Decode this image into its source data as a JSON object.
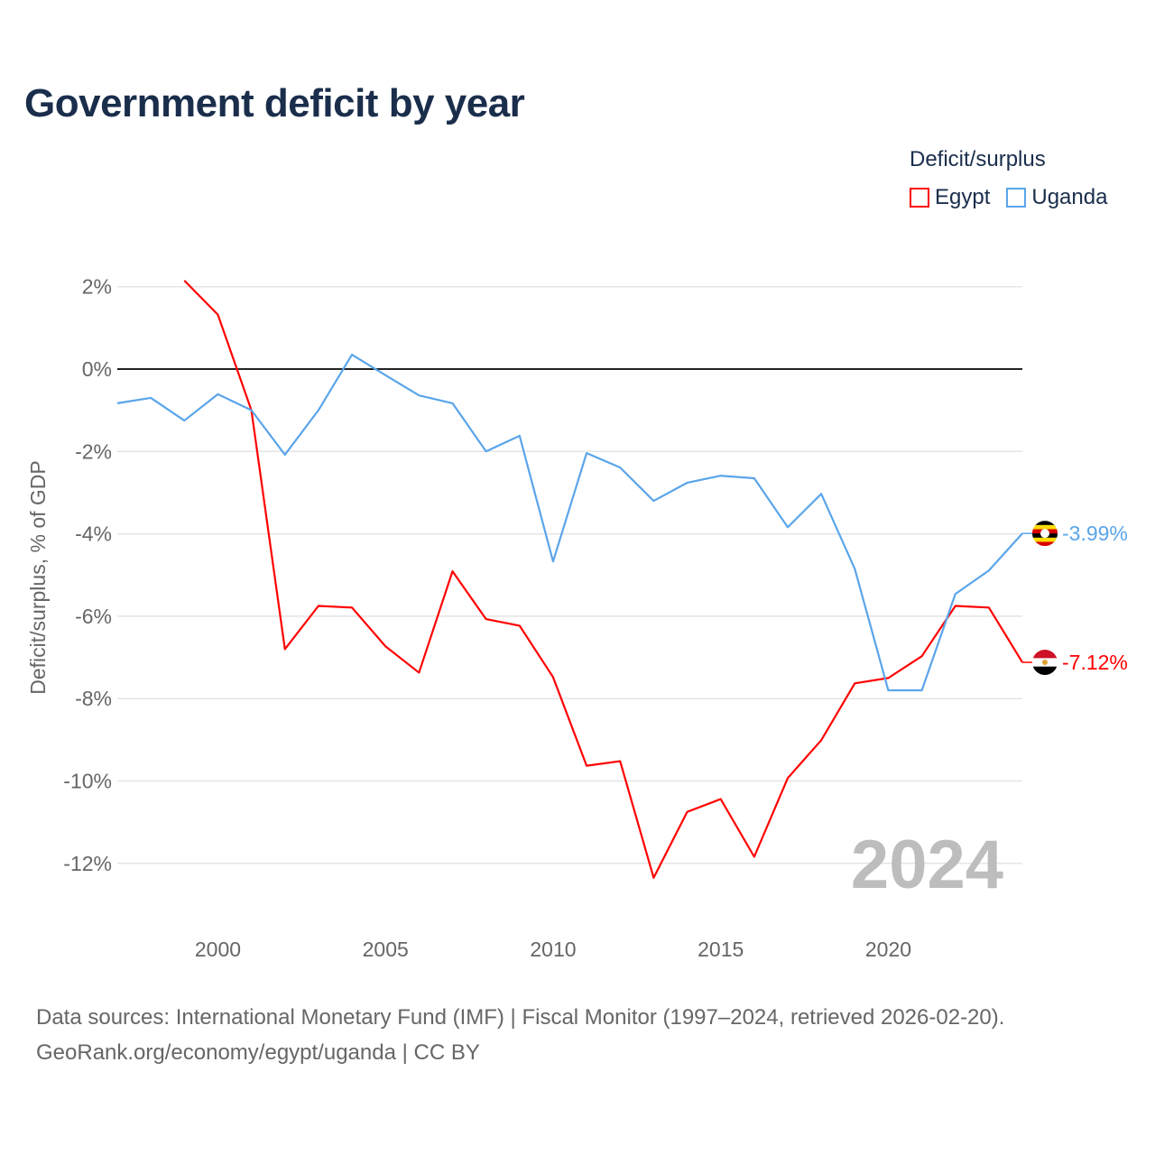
{
  "title": "Government deficit by year",
  "legend": {
    "title": "Deficit/surplus",
    "items": [
      {
        "name": "Egypt",
        "color": "#ff0000"
      },
      {
        "name": "Uganda",
        "color": "#5aa5ea"
      }
    ]
  },
  "chart_data": {
    "type": "line",
    "title": "Government deficit by year",
    "ylabel": "Deficit/surplus, % of GDP",
    "xlabel": "",
    "xlim": [
      1997,
      2024
    ],
    "ylim": [
      -13.5,
      2.5
    ],
    "x_ticks": [
      2000,
      2005,
      2010,
      2015,
      2020
    ],
    "x_tick_labels": [
      "2000",
      "2005",
      "2010",
      "2015",
      "2020"
    ],
    "y_ticks": [
      2,
      0,
      -2,
      -4,
      -6,
      -8,
      -10,
      -12
    ],
    "y_tick_labels": [
      "2%",
      "0%",
      "-2%",
      "-4%",
      "-6%",
      "-8%",
      "-10%",
      "-12%"
    ],
    "year_watermark": "2024",
    "grid": true,
    "series": [
      {
        "name": "Egypt",
        "color": "#ff0000",
        "end_label": "-7.12%",
        "x": [
          1999,
          2000,
          2001,
          2002,
          2003,
          2004,
          2005,
          2006,
          2007,
          2008,
          2009,
          2010,
          2011,
          2012,
          2013,
          2014,
          2015,
          2016,
          2017,
          2018,
          2019,
          2020,
          2021,
          2022,
          2023,
          2024
        ],
        "values": [
          2.15,
          1.32,
          -1.0,
          -6.8,
          -5.75,
          -5.79,
          -6.73,
          -7.37,
          -4.91,
          -6.07,
          -6.23,
          -7.48,
          -9.63,
          -9.52,
          -12.35,
          -10.75,
          -10.44,
          -11.84,
          -9.93,
          -9.01,
          -7.63,
          -7.5,
          -6.97,
          -5.75,
          -5.79,
          -7.12
        ]
      },
      {
        "name": "Uganda",
        "color": "#5aa5ea",
        "end_label": "-3.99%",
        "x": [
          1997,
          1998,
          1999,
          2000,
          2001,
          2002,
          2003,
          2004,
          2005,
          2006,
          2007,
          2008,
          2009,
          2010,
          2011,
          2012,
          2013,
          2014,
          2015,
          2016,
          2017,
          2018,
          2019,
          2020,
          2021,
          2022,
          2023,
          2024
        ],
        "values": [
          -0.83,
          -0.7,
          -1.25,
          -0.61,
          -1.0,
          -2.08,
          -1.0,
          0.35,
          -0.15,
          -0.64,
          -0.83,
          -2.0,
          -1.62,
          -4.67,
          -2.04,
          -2.39,
          -3.2,
          -2.76,
          -2.59,
          -2.65,
          -3.84,
          -3.03,
          -4.85,
          -7.8,
          -7.8,
          -5.46,
          -4.89,
          -3.99
        ]
      }
    ]
  },
  "source": {
    "line1": "Data sources: International Monetary Fund (IMF) | Fiscal Monitor (1997–2024, retrieved 2026-02-20).",
    "line2": "GeoRank.org/economy/egypt/uganda | CC BY"
  }
}
